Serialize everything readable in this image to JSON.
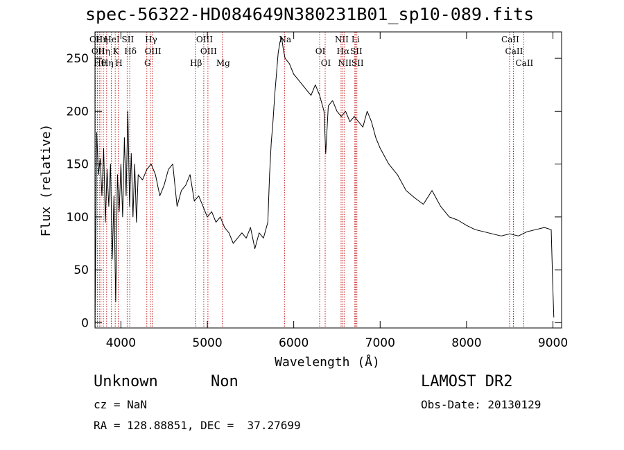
{
  "title": "spec-56322-HD084649N380231B01_sp10-089.fits",
  "info": {
    "class": "Unknown",
    "subclass": "Non",
    "survey": "LAMOST DR2",
    "cz": "cz = NaN",
    "obs_date": "Obs-Date: 20130129",
    "coords": "RA = 128.88851, DEC =  37.27699"
  },
  "colors": {
    "spectrum": "#000000",
    "line_marker": "#c00000",
    "axes": "#000000"
  },
  "chart_data": {
    "type": "line",
    "title": "spec-56322-HD084649N380231B01_sp10-089.fits",
    "xlabel": "Wavelength (Å)",
    "ylabel": "Flux (relative)",
    "xlim": [
      3700,
      9100
    ],
    "ylim": [
      -5,
      275
    ],
    "xticks": [
      4000,
      5000,
      6000,
      7000,
      8000,
      9000
    ],
    "yticks": [
      0,
      50,
      100,
      150,
      200,
      250
    ],
    "series": [
      {
        "x": [
          3700,
          3720,
          3740,
          3760,
          3780,
          3800,
          3820,
          3840,
          3860,
          3880,
          3900,
          3920,
          3940,
          3960,
          3980,
          4000,
          4020,
          4040,
          4060,
          4080,
          4100,
          4120,
          4140,
          4160,
          4180,
          4200,
          4250,
          4300,
          4350,
          4400,
          4450,
          4500,
          4550,
          4600,
          4650,
          4700,
          4750,
          4800,
          4850,
          4900,
          4950,
          5000,
          5050,
          5100,
          5150,
          5200,
          5250,
          5300,
          5350,
          5400,
          5450,
          5500,
          5550,
          5600,
          5650,
          5700,
          5720,
          5740,
          5760,
          5780,
          5800,
          5820,
          5840,
          5860,
          5880,
          5900,
          5950,
          6000,
          6050,
          6100,
          6150,
          6200,
          6250,
          6300,
          6350,
          6370,
          6400,
          6450,
          6500,
          6550,
          6600,
          6650,
          6700,
          6750,
          6800,
          6850,
          6900,
          6950,
          7000,
          7100,
          7200,
          7300,
          7400,
          7500,
          7600,
          7700,
          7800,
          7900,
          8000,
          8100,
          8200,
          8300,
          8400,
          8500,
          8600,
          8700,
          8800,
          8900,
          8980,
          9000,
          9010
        ],
        "y": [
          0,
          180,
          140,
          155,
          120,
          165,
          95,
          145,
          110,
          150,
          60,
          120,
          20,
          140,
          105,
          150,
          100,
          175,
          120,
          200,
          110,
          160,
          100,
          150,
          95,
          140,
          135,
          145,
          150,
          140,
          120,
          130,
          145,
          150,
          110,
          125,
          130,
          140,
          115,
          120,
          110,
          100,
          105,
          95,
          100,
          90,
          85,
          75,
          80,
          85,
          80,
          90,
          70,
          85,
          80,
          95,
          140,
          170,
          190,
          215,
          235,
          255,
          265,
          270,
          258,
          250,
          245,
          235,
          230,
          225,
          220,
          215,
          225,
          215,
          200,
          160,
          205,
          210,
          200,
          195,
          200,
          190,
          195,
          190,
          185,
          200,
          190,
          175,
          165,
          150,
          140,
          125,
          118,
          112,
          125,
          110,
          100,
          97,
          92,
          88,
          86,
          84,
          82,
          84,
          82,
          86,
          88,
          90,
          88,
          30,
          5
        ]
      }
    ],
    "lines": [
      {
        "wave": 3705,
        "label": "OII"
      },
      {
        "wave": 3728,
        "label": "OII"
      },
      {
        "wave": 3750,
        "label": "Hθ"
      },
      {
        "wave": 3770,
        "label": "Hη"
      },
      {
        "wave": 3797,
        "label": "Hη"
      },
      {
        "wave": 3835,
        "label": "Hη"
      },
      {
        "wave": 3889,
        "label": "HeI"
      },
      {
        "wave": 3934,
        "label": "K"
      },
      {
        "wave": 3969,
        "label": "H"
      },
      {
        "wave": 4072,
        "label": "SII"
      },
      {
        "wave": 4102,
        "label": "Hδ"
      },
      {
        "wave": 4300,
        "label": "G"
      },
      {
        "wave": 4341,
        "label": "Hγ"
      },
      {
        "wave": 4363,
        "label": "OIII"
      },
      {
        "wave": 4861,
        "label": "Hβ"
      },
      {
        "wave": 4959,
        "label": "OIII"
      },
      {
        "wave": 5007,
        "label": "OIII"
      },
      {
        "wave": 5175,
        "label": "Mg"
      },
      {
        "wave": 5893,
        "label": "Na"
      },
      {
        "wave": 6300,
        "label": "OI"
      },
      {
        "wave": 6364,
        "label": "OI"
      },
      {
        "wave": 6548,
        "label": "NII"
      },
      {
        "wave": 6563,
        "label": "Hα"
      },
      {
        "wave": 6583,
        "label": "NII"
      },
      {
        "wave": 6707,
        "label": "Li"
      },
      {
        "wave": 6716,
        "label": "SII"
      },
      {
        "wave": 6731,
        "label": "SII"
      },
      {
        "wave": 8498,
        "label": "CaII"
      },
      {
        "wave": 8542,
        "label": "CaII"
      },
      {
        "wave": 8662,
        "label": "CaII"
      }
    ]
  }
}
